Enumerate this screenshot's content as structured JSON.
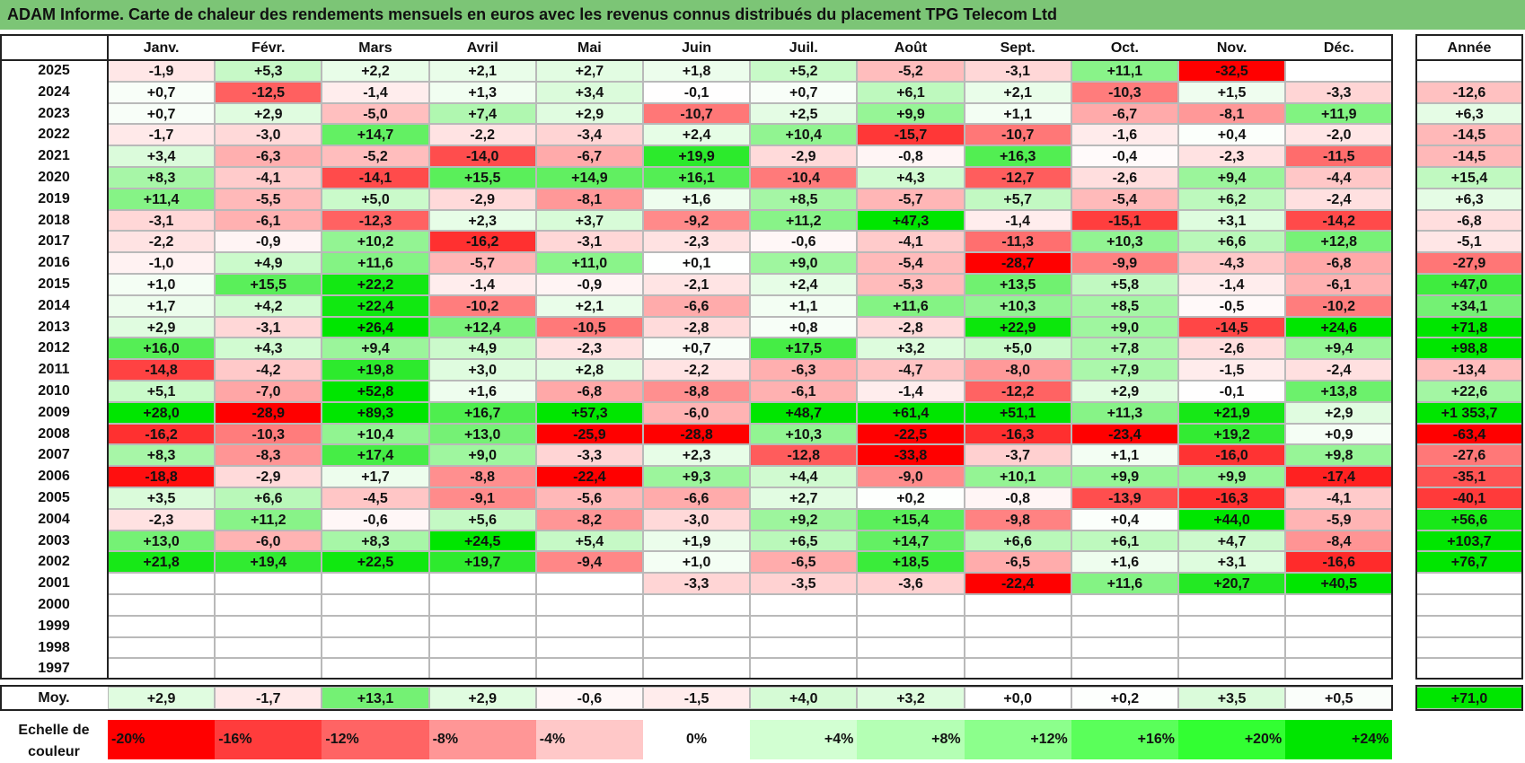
{
  "title": "ADAM Informe. Carte de chaleur des rendements mensuels en euros avec les revenus connus distribués du placement TPG Telecom Ltd",
  "chart_data": {
    "type": "heatmap",
    "title": "ADAM Informe. Carte de chaleur des rendements mensuels en euros avec les revenus connus distribués du placement TPG Telecom Ltd",
    "months": [
      "Janv.",
      "Févr.",
      "Mars",
      "Avril",
      "Mai",
      "Juin",
      "Juil.",
      "Août",
      "Sept.",
      "Oct.",
      "Nov.",
      "Déc."
    ],
    "annual_header": "Année",
    "rows": [
      {
        "year": "2025",
        "months": [
          "-1,9",
          "+5,3",
          "+2,2",
          "+2,1",
          "+2,7",
          "+1,8",
          "+5,2",
          "-5,2",
          "-3,1",
          "+11,1",
          "-32,5",
          ""
        ],
        "annual": ""
      },
      {
        "year": "2024",
        "months": [
          "+0,7",
          "-12,5",
          "-1,4",
          "+1,3",
          "+3,4",
          "-0,1",
          "+0,7",
          "+6,1",
          "+2,1",
          "-10,3",
          "+1,5",
          "-3,3"
        ],
        "annual": "-12,6"
      },
      {
        "year": "2023",
        "months": [
          "+0,7",
          "+2,9",
          "-5,0",
          "+7,4",
          "+2,9",
          "-10,7",
          "+2,5",
          "+9,9",
          "+1,1",
          "-6,7",
          "-8,1",
          "+11,9"
        ],
        "annual": "+6,3"
      },
      {
        "year": "2022",
        "months": [
          "-1,7",
          "-3,0",
          "+14,7",
          "-2,2",
          "-3,4",
          "+2,4",
          "+10,4",
          "-15,7",
          "-10,7",
          "-1,6",
          "+0,4",
          "-2,0"
        ],
        "annual": "-14,5"
      },
      {
        "year": "2021",
        "months": [
          "+3,4",
          "-6,3",
          "-5,2",
          "-14,0",
          "-6,7",
          "+19,9",
          "-2,9",
          "-0,8",
          "+16,3",
          "-0,4",
          "-2,3",
          "-11,5"
        ],
        "annual": "-14,5"
      },
      {
        "year": "2020",
        "months": [
          "+8,3",
          "-4,1",
          "-14,1",
          "+15,5",
          "+14,9",
          "+16,1",
          "-10,4",
          "+4,3",
          "-12,7",
          "-2,6",
          "+9,4",
          "-4,4"
        ],
        "annual": "+15,4"
      },
      {
        "year": "2019",
        "months": [
          "+11,4",
          "-5,5",
          "+5,0",
          "-2,9",
          "-8,1",
          "+1,6",
          "+8,5",
          "-5,7",
          "+5,7",
          "-5,4",
          "+6,2",
          "-2,4"
        ],
        "annual": "+6,3"
      },
      {
        "year": "2018",
        "months": [
          "-3,1",
          "-6,1",
          "-12,3",
          "+2,3",
          "+3,7",
          "-9,2",
          "+11,2",
          "+47,3",
          "-1,4",
          "-15,1",
          "+3,1",
          "-14,2"
        ],
        "annual": "-6,8"
      },
      {
        "year": "2017",
        "months": [
          "-2,2",
          "-0,9",
          "+10,2",
          "-16,2",
          "-3,1",
          "-2,3",
          "-0,6",
          "-4,1",
          "-11,3",
          "+10,3",
          "+6,6",
          "+12,8"
        ],
        "annual": "-5,1"
      },
      {
        "year": "2016",
        "months": [
          "-1,0",
          "+4,9",
          "+11,6",
          "-5,7",
          "+11,0",
          "+0,1",
          "+9,0",
          "-5,4",
          "-28,7",
          "-9,9",
          "-4,3",
          "-6,8"
        ],
        "annual": "-27,9"
      },
      {
        "year": "2015",
        "months": [
          "+1,0",
          "+15,5",
          "+22,2",
          "-1,4",
          "-0,9",
          "-2,1",
          "+2,4",
          "-5,3",
          "+13,5",
          "+5,8",
          "-1,4",
          "-6,1"
        ],
        "annual": "+47,0"
      },
      {
        "year": "2014",
        "months": [
          "+1,7",
          "+4,2",
          "+22,4",
          "-10,2",
          "+2,1",
          "-6,6",
          "+1,1",
          "+11,6",
          "+10,3",
          "+8,5",
          "-0,5",
          "-10,2"
        ],
        "annual": "+34,1"
      },
      {
        "year": "2013",
        "months": [
          "+2,9",
          "-3,1",
          "+26,4",
          "+12,4",
          "-10,5",
          "-2,8",
          "+0,8",
          "-2,8",
          "+22,9",
          "+9,0",
          "-14,5",
          "+24,6"
        ],
        "annual": "+71,8"
      },
      {
        "year": "2012",
        "months": [
          "+16,0",
          "+4,3",
          "+9,4",
          "+4,9",
          "-2,3",
          "+0,7",
          "+17,5",
          "+3,2",
          "+5,0",
          "+7,8",
          "-2,6",
          "+9,4"
        ],
        "annual": "+98,8"
      },
      {
        "year": "2011",
        "months": [
          "-14,8",
          "-4,2",
          "+19,8",
          "+3,0",
          "+2,8",
          "-2,2",
          "-6,3",
          "-4,7",
          "-8,0",
          "+7,9",
          "-1,5",
          "-2,4"
        ],
        "annual": "-13,4"
      },
      {
        "year": "2010",
        "months": [
          "+5,1",
          "-7,0",
          "+52,8",
          "+1,6",
          "-6,8",
          "-8,8",
          "-6,1",
          "-1,4",
          "-12,2",
          "+2,9",
          "-0,1",
          "+13,8"
        ],
        "annual": "+22,6"
      },
      {
        "year": "2009",
        "months": [
          "+28,0",
          "-28,9",
          "+89,3",
          "+16,7",
          "+57,3",
          "-6,0",
          "+48,7",
          "+61,4",
          "+51,1",
          "+11,3",
          "+21,9",
          "+2,9"
        ],
        "annual": "+1 353,7"
      },
      {
        "year": "2008",
        "months": [
          "-16,2",
          "-10,3",
          "+10,4",
          "+13,0",
          "-25,9",
          "-28,8",
          "+10,3",
          "-22,5",
          "-16,3",
          "-23,4",
          "+19,2",
          "+0,9"
        ],
        "annual": "-63,4"
      },
      {
        "year": "2007",
        "months": [
          "+8,3",
          "-8,3",
          "+17,4",
          "+9,0",
          "-3,3",
          "+2,3",
          "-12,8",
          "-33,8",
          "-3,7",
          "+1,1",
          "-16,0",
          "+9,8"
        ],
        "annual": "-27,6"
      },
      {
        "year": "2006",
        "months": [
          "-18,8",
          "-2,9",
          "+1,7",
          "-8,8",
          "-22,4",
          "+9,3",
          "+4,4",
          "-9,0",
          "+10,1",
          "+9,9",
          "+9,9",
          "-17,4"
        ],
        "annual": "-35,1"
      },
      {
        "year": "2005",
        "months": [
          "+3,5",
          "+6,6",
          "-4,5",
          "-9,1",
          "-5,6",
          "-6,6",
          "+2,7",
          "+0,2",
          "-0,8",
          "-13,9",
          "-16,3",
          "-4,1"
        ],
        "annual": "-40,1"
      },
      {
        "year": "2004",
        "months": [
          "-2,3",
          "+11,2",
          "-0,6",
          "+5,6",
          "-8,2",
          "-3,0",
          "+9,2",
          "+15,4",
          "-9,8",
          "+0,4",
          "+44,0",
          "-5,9"
        ],
        "annual": "+56,6"
      },
      {
        "year": "2003",
        "months": [
          "+13,0",
          "-6,0",
          "+8,3",
          "+24,5",
          "+5,4",
          "+1,9",
          "+6,5",
          "+14,7",
          "+6,6",
          "+6,1",
          "+4,7",
          "-8,4"
        ],
        "annual": "+103,7"
      },
      {
        "year": "2002",
        "months": [
          "+21,8",
          "+19,4",
          "+22,5",
          "+19,7",
          "-9,4",
          "+1,0",
          "-6,5",
          "+18,5",
          "-6,5",
          "+1,6",
          "+3,1",
          "-16,6"
        ],
        "annual": "+76,7"
      },
      {
        "year": "2001",
        "months": [
          "",
          "",
          "",
          "",
          "",
          "-3,3",
          "-3,5",
          "-3,6",
          "-22,4",
          "+11,6",
          "+20,7",
          "+40,5"
        ],
        "annual": ""
      },
      {
        "year": "2000",
        "months": [
          "",
          "",
          "",
          "",
          "",
          "",
          "",
          "",
          "",
          "",
          "",
          ""
        ],
        "annual": ""
      },
      {
        "year": "1999",
        "months": [
          "",
          "",
          "",
          "",
          "",
          "",
          "",
          "",
          "",
          "",
          "",
          ""
        ],
        "annual": ""
      },
      {
        "year": "1998",
        "months": [
          "",
          "",
          "",
          "",
          "",
          "",
          "",
          "",
          "",
          "",
          "",
          ""
        ],
        "annual": ""
      },
      {
        "year": "1997",
        "months": [
          "",
          "",
          "",
          "",
          "",
          "",
          "",
          "",
          "",
          "",
          "",
          ""
        ],
        "annual": ""
      }
    ],
    "average": {
      "label": "Moy.",
      "months": [
        "+2,9",
        "-1,7",
        "+13,1",
        "+2,9",
        "-0,6",
        "-1,5",
        "+4,0",
        "+3,2",
        "+0,0",
        "+0,2",
        "+3,5",
        "+0,5"
      ],
      "annual": "+71,0"
    },
    "scale": {
      "label_line1": "Echelle de",
      "label_line2": "couleur",
      "steps": [
        {
          "label": "-20%",
          "color": "#ff0000"
        },
        {
          "label": "-16%",
          "color": "#ff3c3c"
        },
        {
          "label": "-12%",
          "color": "#ff6464"
        },
        {
          "label": "-8%",
          "color": "#ff9696"
        },
        {
          "label": "-4%",
          "color": "#ffc8c8"
        },
        {
          "label": "0%",
          "color": "#ffffff"
        },
        {
          "label": "+4%",
          "color": "#d2ffd2"
        },
        {
          "label": "+8%",
          "color": "#b4ffb4"
        },
        {
          "label": "+12%",
          "color": "#8cff8c"
        },
        {
          "label": "+16%",
          "color": "#5aff5a"
        },
        {
          "label": "+20%",
          "color": "#32ff32"
        },
        {
          "label": "+24%",
          "color": "#00e600"
        }
      ]
    }
  }
}
